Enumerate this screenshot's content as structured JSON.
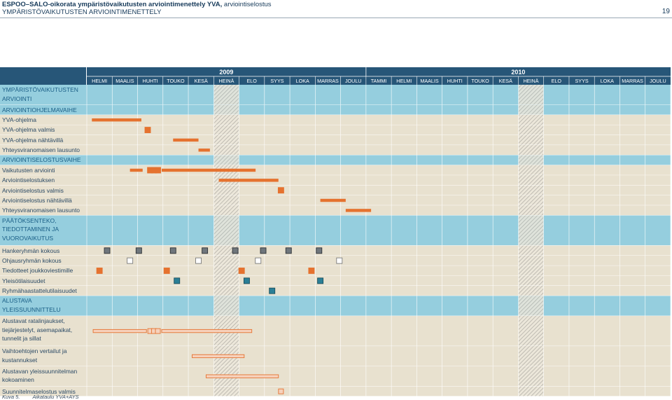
{
  "header": {
    "line1_bold": "ESPOO–SALO-oikorata ympäristövaikutusten arviointimenettely YVA,",
    "line1_rest": " arviointiselostus",
    "line2": "YMPÄRISTÖVAIKUTUSTEN ARVIOINTIMENETTELY",
    "page_number": "19"
  },
  "years": [
    "2009",
    "2010"
  ],
  "months": [
    "HELMI",
    "MAALIS",
    "HUHTI",
    "TOUKO",
    "KESÄ",
    "HEINÄ",
    "ELO",
    "SYYS",
    "LOKA",
    "MARRAS",
    "JOULU",
    "TAMMI",
    "HELMI",
    "MAALIS",
    "HUHTI",
    "TOUKO",
    "KESÄ",
    "HEINÄ",
    "ELO",
    "SYYS",
    "LOKA",
    "MARRAS",
    "JOULU"
  ],
  "hatched_months": [
    5,
    17
  ],
  "colors": {
    "orange": "#e5722f",
    "dark_square": "#6f767c",
    "teal_square": "#2b7f96",
    "light_fill": "#f6d2bd",
    "row_bg": "#e8e1cf",
    "section_bg": "#95cede",
    "header_bg": "#275678"
  },
  "rows": [
    {
      "type": "section",
      "label": "YMPÄRISTÖVAIKUTUSTEN ARVIOINTI",
      "lines": 2,
      "bars": []
    },
    {
      "type": "section",
      "label": "ARVIOINTIOHJELMAVAIHE",
      "lines": 1,
      "bars": []
    },
    {
      "type": "task",
      "label": "YVA-ohjelma",
      "lines": 1,
      "bars": [
        {
          "style": "bar",
          "start": 0.2,
          "end": 2.15
        }
      ]
    },
    {
      "type": "task",
      "label": "YVA-ohjelma valmis",
      "lines": 1,
      "bars": [
        {
          "style": "sq-orange",
          "at": 2.4
        }
      ]
    },
    {
      "type": "task",
      "label": "YVA-ohjelma nähtävillä",
      "lines": 1,
      "bars": [
        {
          "style": "bar",
          "start": 3.4,
          "end": 4.4
        }
      ]
    },
    {
      "type": "task",
      "label": "Yhteysviranomaisen lausunto",
      "lines": 1,
      "bars": [
        {
          "style": "bar",
          "start": 4.4,
          "end": 4.85
        }
      ]
    },
    {
      "type": "section",
      "label": "ARVIOINTISELOSTUSVAIHE",
      "lines": 1,
      "bars": []
    },
    {
      "type": "task",
      "label": "Vaikutusten arviointi",
      "lines": 1,
      "bars": [
        {
          "style": "bar",
          "start": 1.7,
          "end": 2.2
        },
        {
          "style": "sq-orange",
          "at": 2.5
        },
        {
          "style": "sq-orange",
          "at": 2.65
        },
        {
          "style": "sq-orange",
          "at": 2.8
        },
        {
          "style": "bar",
          "start": 2.95,
          "end": 6.65
        }
      ]
    },
    {
      "type": "task",
      "label": "Arviointiselostuksen",
      "lines": 1,
      "bars": [
        {
          "style": "bar",
          "start": 5.2,
          "end": 7.55
        }
      ]
    },
    {
      "type": "task",
      "label": "Arviointiselostus valmis",
      "lines": 1,
      "bars": [
        {
          "style": "sq-orange",
          "at": 7.65
        }
      ]
    },
    {
      "type": "task",
      "label": "Arviointiselostus nähtävillä",
      "lines": 1,
      "bars": [
        {
          "style": "bar",
          "start": 9.2,
          "end": 10.2
        }
      ]
    },
    {
      "type": "task",
      "label": "Yhteysviranomaisen lausunto",
      "lines": 1,
      "bars": [
        {
          "style": "bar",
          "start": 10.2,
          "end": 11.2
        }
      ]
    },
    {
      "type": "section",
      "label": "PÄÄTÖKSENTEKO, TIEDOTTAMINEN JA VUOROVAIKUTUS",
      "lines": 3,
      "bars": []
    },
    {
      "type": "task",
      "label": "Hankeryhmän kokous",
      "lines": 1,
      "bars": [
        {
          "style": "sq-dark",
          "at": 0.8
        },
        {
          "style": "sq-dark",
          "at": 2.05
        },
        {
          "style": "sq-dark",
          "at": 3.4
        },
        {
          "style": "sq-dark",
          "at": 4.65
        },
        {
          "style": "sq-dark",
          "at": 5.85
        },
        {
          "style": "sq-dark",
          "at": 6.95
        },
        {
          "style": "sq-dark",
          "at": 7.95
        },
        {
          "style": "sq-dark",
          "at": 9.15
        }
      ]
    },
    {
      "type": "task",
      "label": "Ohjausryhmän kokous",
      "lines": 1,
      "bars": [
        {
          "style": "sq-white",
          "at": 1.7
        },
        {
          "style": "sq-white",
          "at": 4.4
        },
        {
          "style": "sq-white",
          "at": 6.75
        },
        {
          "style": "sq-white",
          "at": 9.95
        }
      ]
    },
    {
      "type": "task",
      "label": "Tiedotteet joukkoviestimille",
      "lines": 1,
      "bars": [
        {
          "style": "sq-orange",
          "at": 0.5
        },
        {
          "style": "sq-orange",
          "at": 3.15
        },
        {
          "style": "sq-orange",
          "at": 6.1
        },
        {
          "style": "sq-orange",
          "at": 8.85
        }
      ]
    },
    {
      "type": "task",
      "label": "Yleisötilaisuudet",
      "lines": 1,
      "bars": [
        {
          "style": "sq-teal",
          "at": 3.55
        },
        {
          "style": "sq-teal",
          "at": 6.3
        },
        {
          "style": "sq-teal",
          "at": 9.2
        }
      ]
    },
    {
      "type": "task",
      "label": "Ryhmähaastattelutilaisuudet",
      "lines": 1,
      "bars": [
        {
          "style": "sq-teal",
          "at": 7.3
        }
      ]
    },
    {
      "type": "section",
      "label": "ALUSTAVA YLEISSUUNNITTELU",
      "lines": 2,
      "bars": []
    },
    {
      "type": "task",
      "label": "Alustavat ratalinjaukset, tiejärjestelyt, asemapaikat, tunnelit ja sillat",
      "lines": 3,
      "bars": [
        {
          "style": "lbar",
          "start": 0.25,
          "end": 2.35
        },
        {
          "style": "lsq",
          "at": 2.5
        },
        {
          "style": "lsq",
          "at": 2.65
        },
        {
          "style": "lsq",
          "at": 2.8
        },
        {
          "style": "lbar",
          "start": 2.95,
          "end": 6.5
        }
      ]
    },
    {
      "type": "task",
      "label": "Vaihtoehtojen vertailut ja kustannukset",
      "lines": 2,
      "bars": [
        {
          "style": "lbar",
          "start": 4.15,
          "end": 6.2
        }
      ]
    },
    {
      "type": "task",
      "label": "Alustavan yleissuunnitelman kokoaminen",
      "lines": 2,
      "bars": [
        {
          "style": "lbar",
          "start": 4.7,
          "end": 7.55
        }
      ]
    },
    {
      "type": "task",
      "label": "Suunnitelmaselostus valmis",
      "lines": 1,
      "bars": [
        {
          "style": "lsq",
          "at": 7.65
        }
      ]
    }
  ],
  "caption": {
    "number": "Kuva 5.",
    "text": "Aikataulu YVA+AYS"
  }
}
